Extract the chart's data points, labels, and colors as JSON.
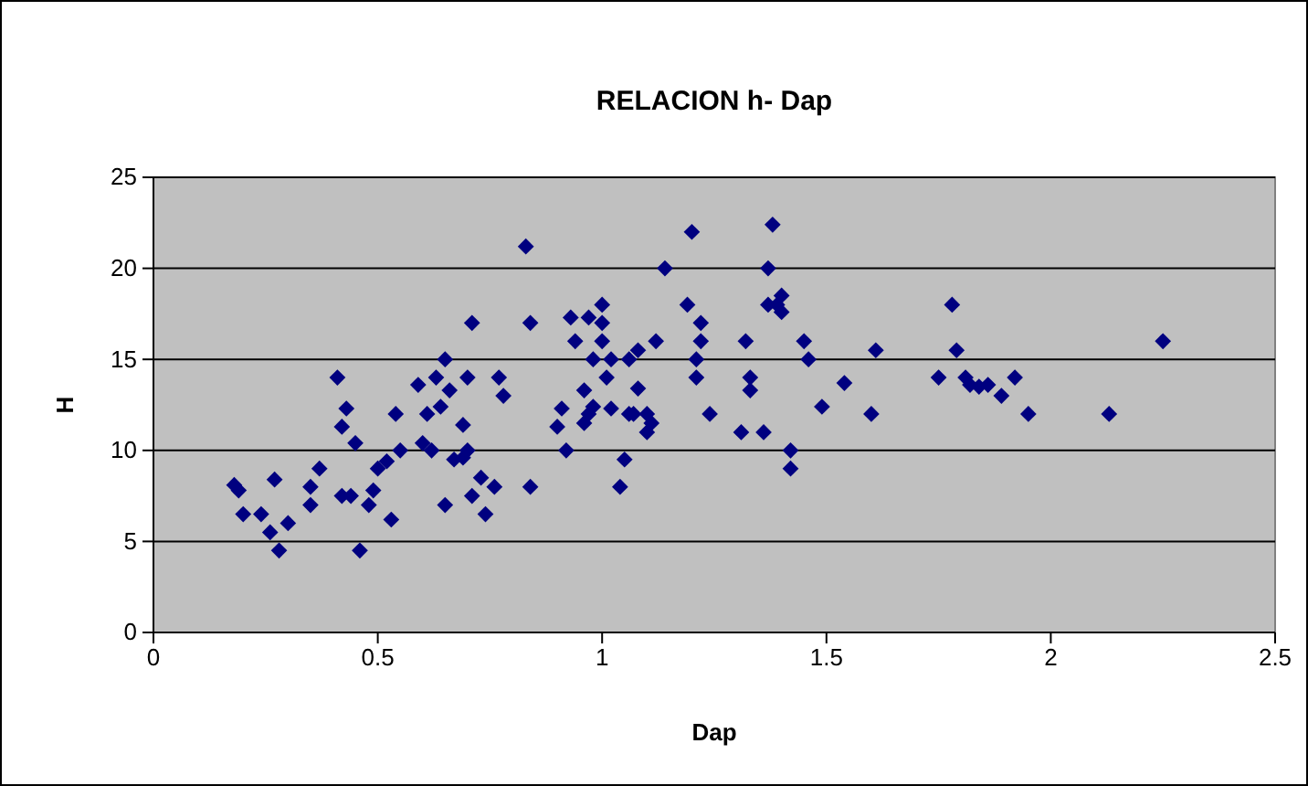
{
  "chart_data": {
    "type": "scatter",
    "title": "RELACION h- Dap",
    "xlabel": "Dap",
    "ylabel": "H",
    "xlim": [
      0,
      2.5
    ],
    "xticks": [
      0,
      0.5,
      1,
      1.5,
      2,
      2.5
    ],
    "ylim": [
      0,
      25
    ],
    "yticks": [
      0,
      5,
      10,
      15,
      20,
      25
    ],
    "grid": "y",
    "marker": "diamond",
    "series": [
      {
        "color": "#000080",
        "x": [
          0.18,
          0.19,
          0.2,
          0.24,
          0.26,
          0.27,
          0.28,
          0.3,
          0.35,
          0.35,
          0.37,
          0.41,
          0.42,
          0.42,
          0.43,
          0.44,
          0.45,
          0.46,
          0.48,
          0.49,
          0.5,
          0.52,
          0.53,
          0.54,
          0.55,
          0.59,
          0.6,
          0.61,
          0.62,
          0.63,
          0.64,
          0.65,
          0.65,
          0.66,
          0.67,
          0.69,
          0.69,
          0.7,
          0.7,
          0.71,
          0.71,
          0.73,
          0.74,
          0.76,
          0.77,
          0.78,
          0.83,
          0.84,
          0.84,
          0.9,
          0.91,
          0.92,
          0.93,
          0.94,
          0.96,
          0.96,
          0.97,
          0.97,
          0.98,
          0.98,
          1.0,
          1.0,
          1.0,
          1.01,
          1.02,
          1.02,
          1.04,
          1.05,
          1.06,
          1.06,
          1.07,
          1.08,
          1.08,
          1.1,
          1.1,
          1.11,
          1.12,
          1.14,
          1.19,
          1.2,
          1.21,
          1.21,
          1.22,
          1.22,
          1.24,
          1.31,
          1.32,
          1.33,
          1.33,
          1.36,
          1.37,
          1.37,
          1.38,
          1.39,
          1.4,
          1.4,
          1.42,
          1.42,
          1.45,
          1.46,
          1.49,
          1.54,
          1.6,
          1.61,
          1.75,
          1.78,
          1.79,
          1.81,
          1.82,
          1.84,
          1.86,
          1.89,
          1.92,
          1.95,
          2.13,
          2.25
        ],
        "values": [
          8.1,
          7.8,
          6.5,
          6.5,
          5.5,
          8.4,
          4.5,
          6,
          7,
          8,
          9,
          14,
          11.3,
          7.5,
          12.3,
          7.5,
          10.4,
          4.5,
          7,
          7.8,
          9,
          9.4,
          6.2,
          12,
          10,
          13.6,
          10.4,
          12,
          10,
          14,
          12.4,
          15,
          7,
          13.3,
          9.5,
          11.4,
          9.6,
          10,
          14,
          17,
          7.5,
          8.5,
          6.5,
          8,
          14,
          13,
          21.2,
          17,
          8,
          11.3,
          12.3,
          10,
          17.3,
          16,
          11.5,
          13.3,
          12,
          17.3,
          12.4,
          15,
          16,
          18,
          17,
          14,
          15,
          12.3,
          8,
          9.5,
          12,
          15,
          12,
          13.4,
          15.5,
          12,
          11,
          11.5,
          16,
          20,
          18,
          22,
          15,
          14,
          16,
          17,
          12,
          11,
          16,
          13.3,
          14,
          11,
          20,
          18,
          22.4,
          18,
          17.6,
          18.5,
          10,
          9,
          16,
          15,
          12.4,
          13.7,
          12,
          15.5,
          14,
          18,
          15.5,
          14,
          13.6,
          13.5,
          13.6,
          13,
          14,
          12,
          12,
          16
        ]
      }
    ]
  }
}
